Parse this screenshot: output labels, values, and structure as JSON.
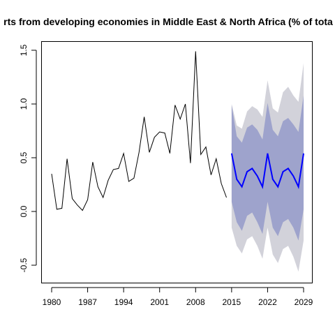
{
  "chart_data": {
    "type": "line",
    "title": "rts from developing economies in Middle East & North Africa (% of tota",
    "xlabel": "",
    "ylabel": "",
    "xlim": [
      1980,
      2029
    ],
    "ylim": [
      -0.65,
      1.6
    ],
    "x_ticks": [
      1980,
      1987,
      1994,
      2001,
      2008,
      2015,
      2022,
      2029
    ],
    "y_ticks": [
      -0.5,
      0.0,
      0.5,
      1.0,
      1.5
    ],
    "x_tick_labels": [
      "1980",
      "1987",
      "1994",
      "2001",
      "2008",
      "2015",
      "2022",
      "2029"
    ],
    "y_tick_labels": [
      "-0.5",
      "0.0",
      "0.5",
      "1.0",
      "1.5"
    ],
    "grid": false,
    "historical": {
      "color": "#000000",
      "x": [
        1980,
        1981,
        1982,
        1983,
        1984,
        1985,
        1986,
        1987,
        1988,
        1989,
        1990,
        1991,
        1992,
        1993,
        1994,
        1995,
        1996,
        1997,
        1998,
        1999,
        2000,
        2001,
        2002,
        2003,
        2004,
        2005,
        2006,
        2007,
        2008,
        2009,
        2010,
        2011,
        2012,
        2013,
        2014
      ],
      "y": [
        0.35,
        0.02,
        0.03,
        0.49,
        0.12,
        0.06,
        0.01,
        0.11,
        0.46,
        0.23,
        0.13,
        0.29,
        0.39,
        0.4,
        0.54,
        0.28,
        0.31,
        0.55,
        0.88,
        0.55,
        0.69,
        0.74,
        0.73,
        0.54,
        0.99,
        0.86,
        1.0,
        0.45,
        1.49,
        0.53,
        0.6,
        0.34,
        0.49,
        0.26,
        0.13
      ]
    },
    "forecast": {
      "color": "#0000ff",
      "x": [
        2015,
        2016,
        2017,
        2018,
        2019,
        2020,
        2021,
        2022,
        2023,
        2024,
        2025,
        2026,
        2027,
        2028,
        2029
      ],
      "mean": [
        0.54,
        0.3,
        0.23,
        0.37,
        0.4,
        0.33,
        0.23,
        0.54,
        0.3,
        0.23,
        0.37,
        0.4,
        0.33,
        0.23,
        0.54
      ],
      "lo80": [
        0.09,
        -0.1,
        -0.18,
        -0.04,
        -0.01,
        -0.1,
        -0.21,
        0.09,
        -0.15,
        -0.23,
        -0.1,
        -0.07,
        -0.15,
        -0.27,
        0.02
      ],
      "hi80": [
        0.99,
        0.7,
        0.64,
        0.78,
        0.81,
        0.76,
        0.67,
        1.01,
        0.76,
        0.7,
        0.84,
        0.87,
        0.81,
        0.74,
        1.08
      ],
      "lo95": [
        -0.15,
        -0.32,
        -0.39,
        -0.26,
        -0.23,
        -0.32,
        -0.44,
        -0.15,
        -0.4,
        -0.48,
        -0.35,
        -0.32,
        -0.42,
        -0.56,
        -0.27
      ],
      "hi95": [
        1.0,
        0.8,
        0.77,
        0.93,
        0.98,
        0.95,
        0.88,
        1.22,
        0.96,
        0.92,
        1.11,
        1.16,
        1.08,
        1.02,
        1.38
      ],
      "band80_color": "#9ea3cc",
      "band95_color": "#d2d2da"
    }
  }
}
